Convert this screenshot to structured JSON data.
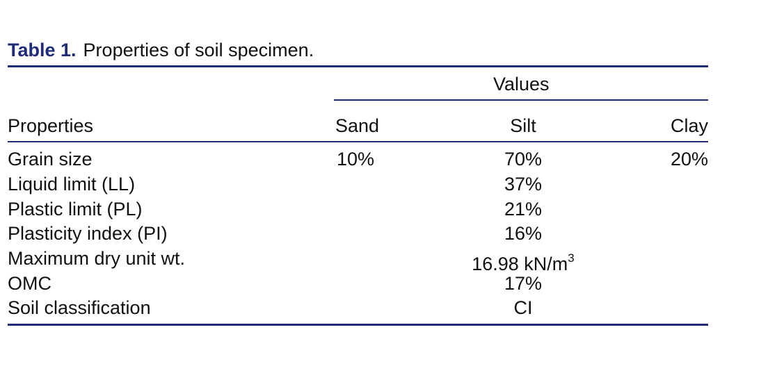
{
  "caption": {
    "label": "Table 1.",
    "text": "Properties of soil specimen."
  },
  "table": {
    "group_header": "Values",
    "columns": [
      "Properties",
      "Sand",
      "Silt",
      "Clay"
    ],
    "grain_size": {
      "label": "Grain size",
      "sand": "10%",
      "silt": "70%",
      "clay": "20%"
    },
    "rows": [
      {
        "label": "Liquid limit (LL)",
        "value": "37%"
      },
      {
        "label": "Plastic limit (PL)",
        "value": "21%"
      },
      {
        "label": "Plasticity index (PI)",
        "value": "16%"
      },
      {
        "label": "Maximum dry unit wt.",
        "value": "16.98 kN/m",
        "superscript": "3"
      },
      {
        "label": "OMC",
        "value": "17%"
      },
      {
        "label": "Soil classification",
        "value": "CI"
      }
    ]
  },
  "colors": {
    "rule": "#1f2a7a",
    "caption_label": "#1f2a7a",
    "text": "#111111"
  }
}
